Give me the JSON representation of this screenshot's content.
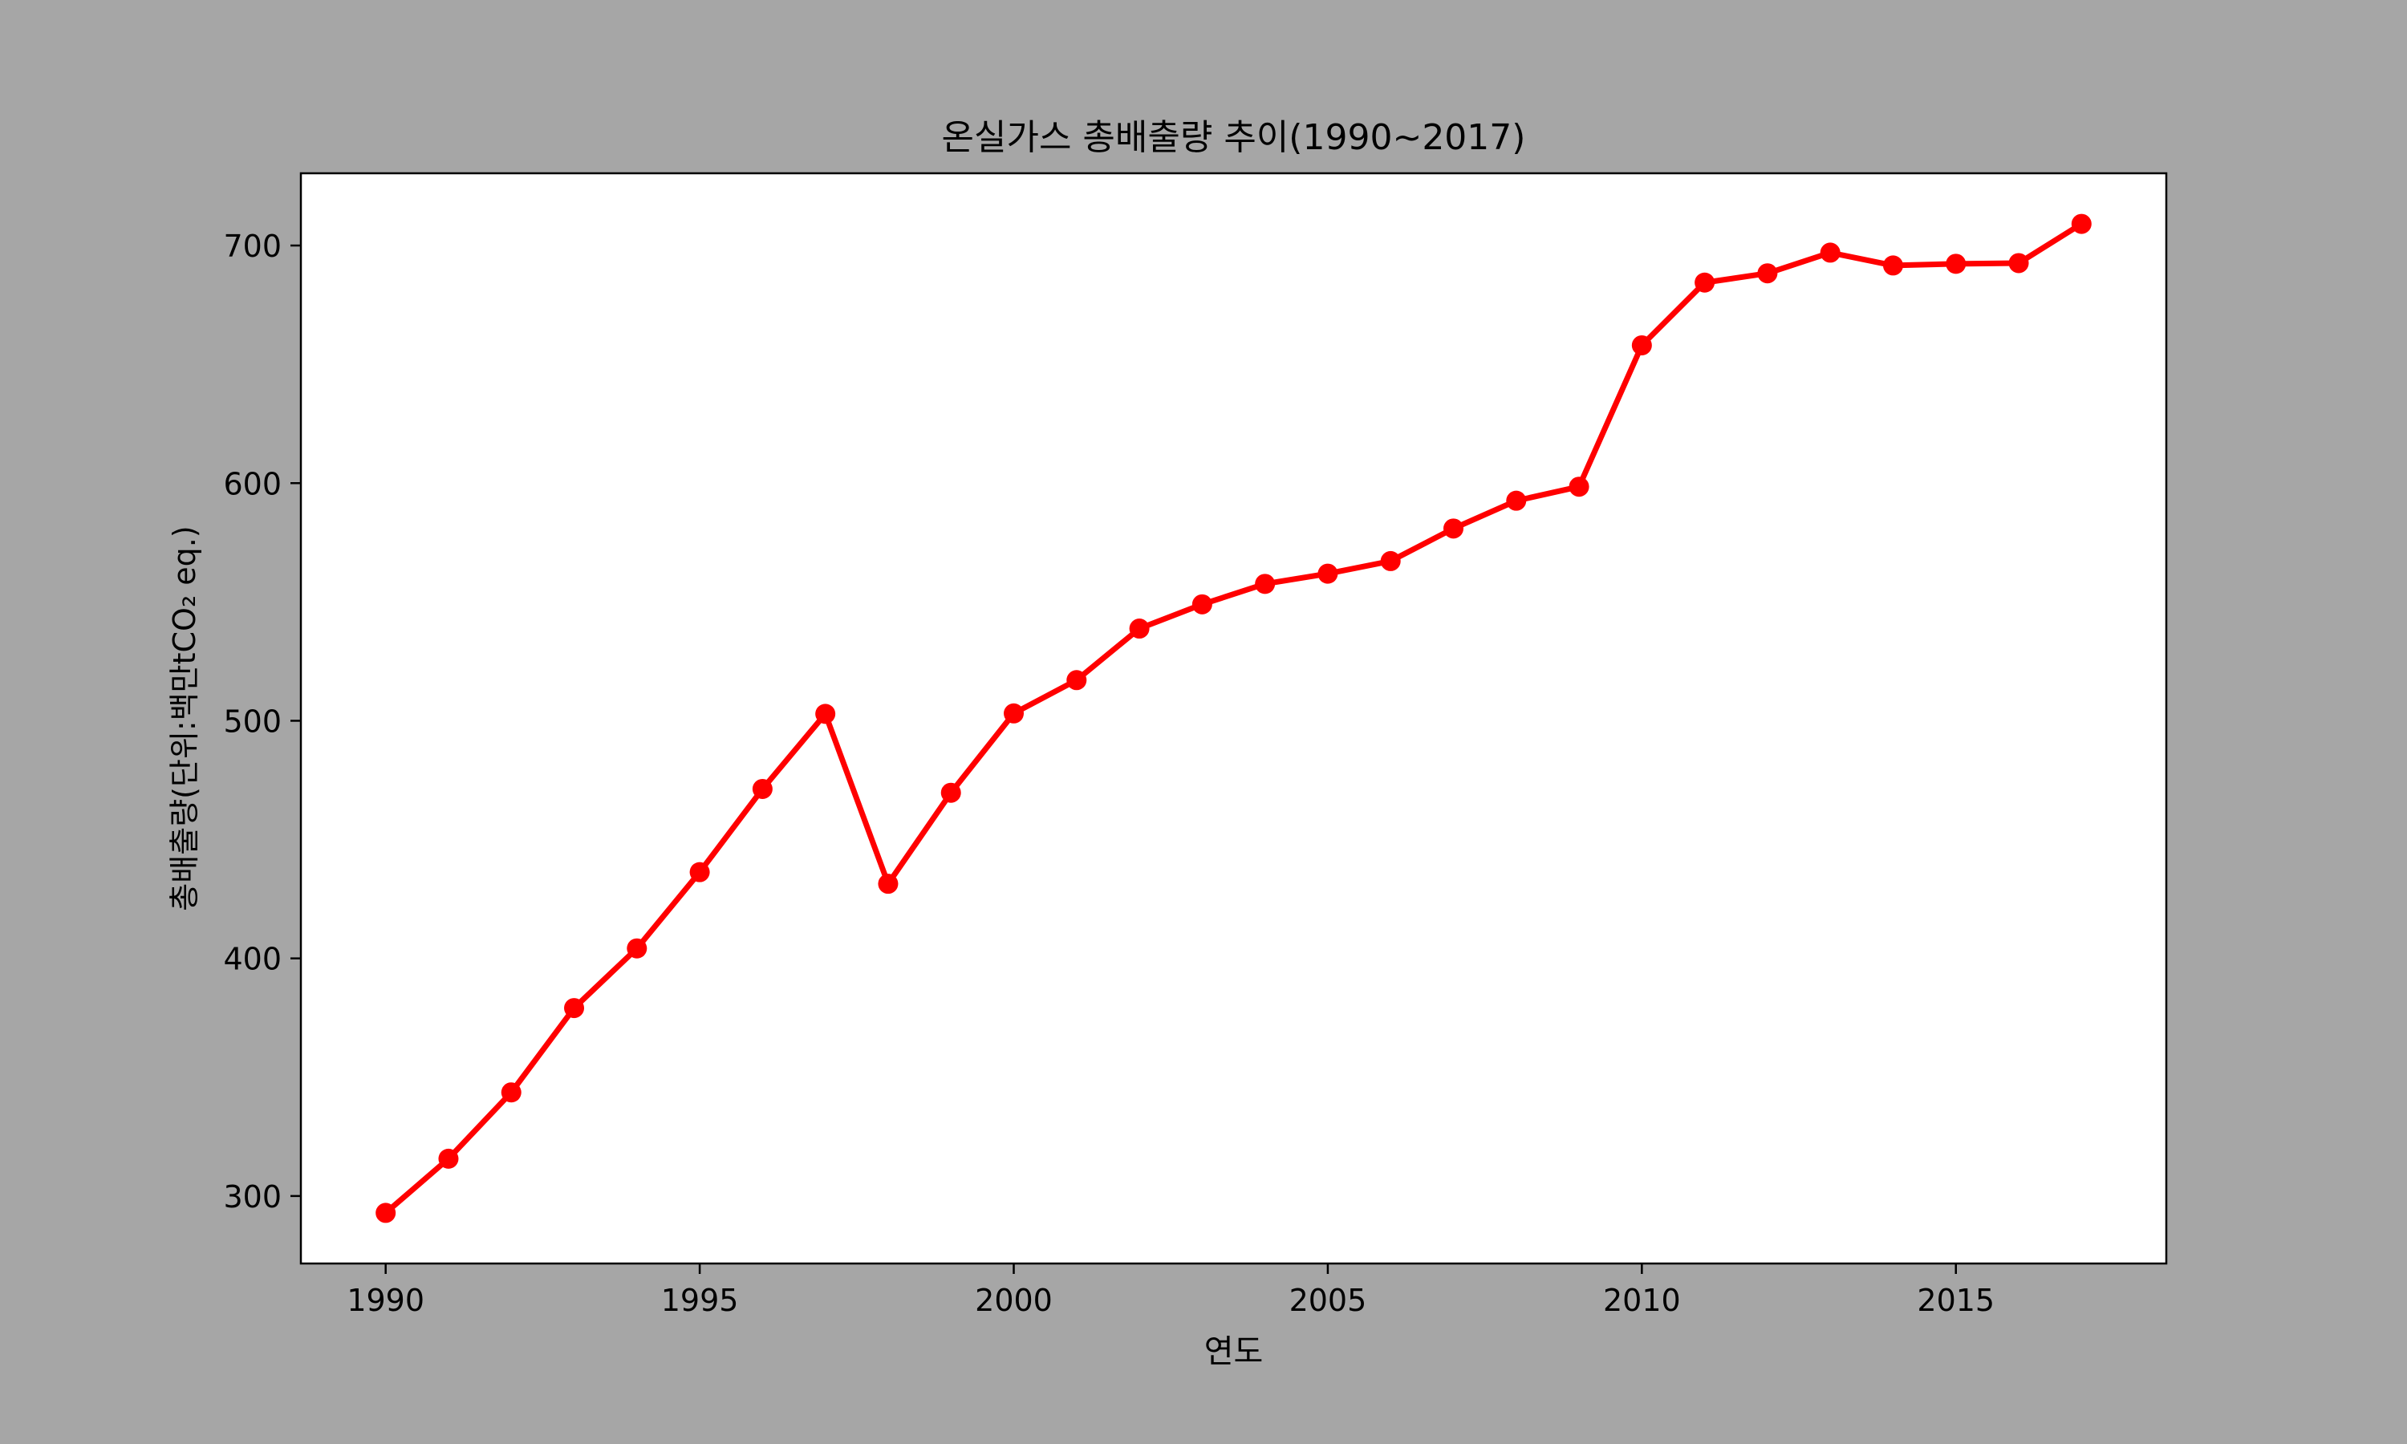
{
  "chart_data": {
    "type": "line",
    "title": "온실가스 총배출량 추이(1990~2017)",
    "xlabel": "연도",
    "ylabel": "총배출량(단위:백만tCO₂ eq.)",
    "x": [
      1990,
      1991,
      1992,
      1993,
      1994,
      1995,
      1996,
      1997,
      1998,
      1999,
      2000,
      2001,
      2002,
      2003,
      2004,
      2005,
      2006,
      2007,
      2008,
      2009,
      2010,
      2011,
      2012,
      2013,
      2014,
      2015,
      2016,
      2017
    ],
    "series": [
      {
        "values": [
          292.9,
          315.7,
          343.6,
          379.1,
          404.2,
          436.3,
          471.3,
          502.9,
          431.4,
          469.7,
          503.1,
          517.1,
          538.8,
          549.0,
          557.6,
          561.9,
          567.2,
          580.9,
          592.6,
          598.5,
          658.0,
          684.4,
          688.3,
          697.0,
          691.6,
          692.3,
          692.6,
          709.1
        ],
        "color": "#ff0000",
        "marker": "circle"
      }
    ],
    "xticks": [
      "1990",
      "1995",
      "2000",
      "2005",
      "2010",
      "2015"
    ],
    "xtick_values": [
      1990,
      1995,
      2000,
      2005,
      2010,
      2015
    ],
    "yticks": [
      "300",
      "400",
      "500",
      "600",
      "700"
    ],
    "ytick_values": [
      300,
      400,
      500,
      600,
      700
    ],
    "xlim": [
      1988.65,
      2018.35
    ],
    "ylim": [
      271.6,
      730.4
    ],
    "grid": false,
    "legend": false,
    "colors": {
      "figure_background": "#a6a6a6",
      "plot_background": "#ffffff",
      "line": "#ff0000"
    }
  }
}
